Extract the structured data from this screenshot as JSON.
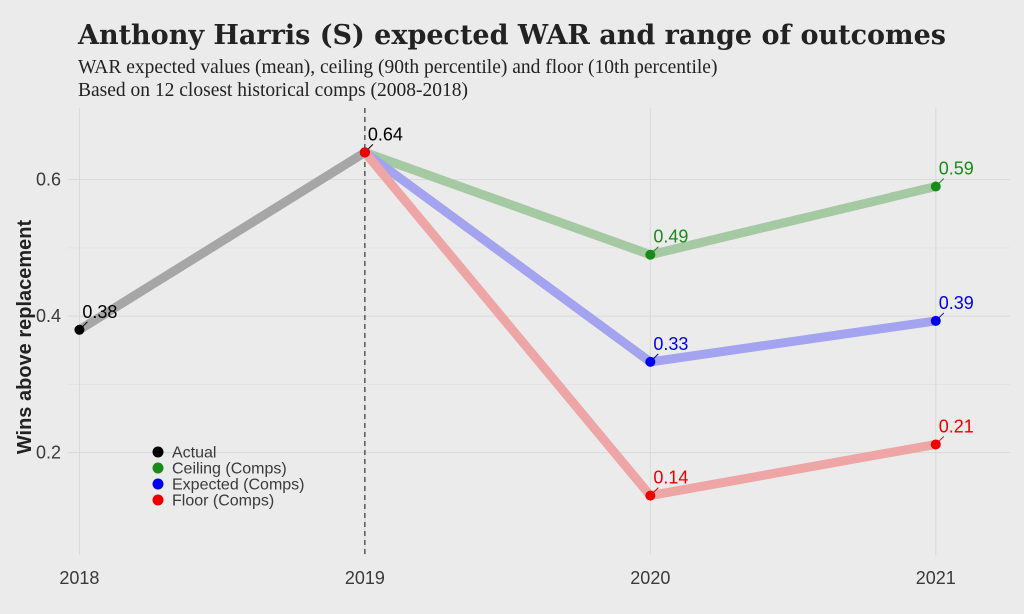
{
  "chart_data": {
    "type": "line",
    "title": "Anthony Harris (S) expected WAR and range of outcomes",
    "subtitle": [
      "WAR expected values (mean), ceiling (90th percentile) and floor (10th percentile)",
      "Based on 12 closest historical comps (2008-2018)"
    ],
    "xlabel": "",
    "ylabel": "Wins above replacement",
    "x": [
      2018,
      2019,
      2020,
      2021
    ],
    "xlim": [
      2017.96,
      2021.26
    ],
    "ylim": [
      0.05,
      0.705
    ],
    "yticks": [
      0.2,
      0.4,
      0.6
    ],
    "grid": true,
    "legend_position": "bottom-left",
    "vline_x": 2019,
    "series": [
      {
        "name": "Actual",
        "color": "#000000",
        "line_color": "#a6a6a6",
        "x": [
          2018,
          2019
        ],
        "values": [
          0.38,
          0.64
        ],
        "labels": [
          "0.38",
          "0.64"
        ]
      },
      {
        "name": "Ceiling (Comps)",
        "color": "#1a8a1a",
        "line_color": "#a5c9a2",
        "x": [
          2019,
          2020,
          2021
        ],
        "values": [
          0.64,
          0.49,
          0.59
        ],
        "labels": [
          "",
          "0.49",
          "0.59"
        ]
      },
      {
        "name": "Expected (Comps)",
        "color": "#0000ee",
        "line_color": "#a3a3ef",
        "x": [
          2019,
          2020,
          2021
        ],
        "values": [
          0.64,
          0.333,
          0.393
        ],
        "labels": [
          "",
          "0.33",
          "0.39"
        ]
      },
      {
        "name": "Floor (Comps)",
        "color": "#ee0000",
        "line_color": "#eda5a5",
        "x": [
          2019,
          2020,
          2021
        ],
        "values": [
          0.64,
          0.137,
          0.212
        ],
        "labels": [
          "",
          "0.14",
          "0.21"
        ]
      }
    ]
  }
}
